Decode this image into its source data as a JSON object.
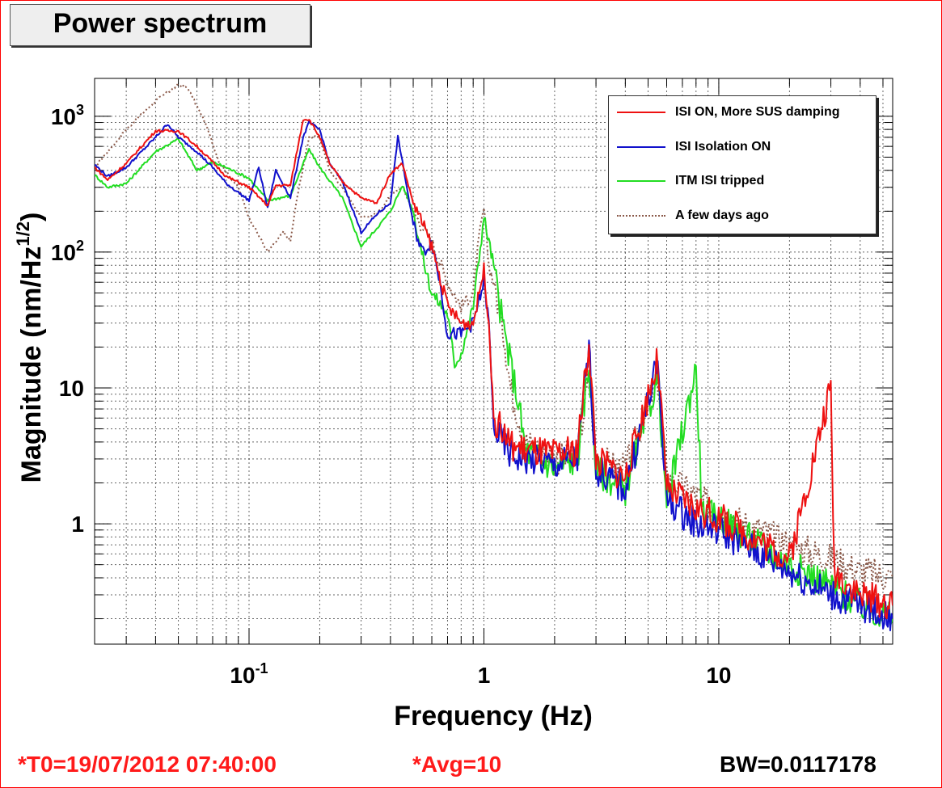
{
  "title": "Power spectrum",
  "footer": {
    "t0": "*T0=19/07/2012 07:40:00",
    "avg": "*Avg=10",
    "bw": "BW=0.0117178"
  },
  "colors": {
    "frame": "#ff0000",
    "footer_red": "#ff1a1a"
  },
  "chart_data": {
    "type": "line",
    "title": "Power spectrum",
    "xlabel": "Frequency (Hz)",
    "ylabel": "Magnitude (nm/Hz^1/2)",
    "xscale": "log",
    "yscale": "log",
    "xlim": [
      0.022,
      55
    ],
    "ylim": [
      0.13,
      1900
    ],
    "grid": true,
    "legend_position": "top-right",
    "x_tick_labels": [
      {
        "value": 0.1,
        "base": "10",
        "exp": "-1"
      },
      {
        "value": 1,
        "base": "1",
        "exp": ""
      },
      {
        "value": 10,
        "base": "10",
        "exp": ""
      }
    ],
    "y_tick_labels": [
      {
        "value": 1,
        "base": "1",
        "exp": ""
      },
      {
        "value": 10,
        "base": "10",
        "exp": ""
      },
      {
        "value": 100,
        "base": "10",
        "exp": "2"
      },
      {
        "value": 1000,
        "base": "10",
        "exp": "3"
      }
    ],
    "series": [
      {
        "name": "A few days ago",
        "color": "#8b5a4a",
        "dash": true,
        "points": [
          [
            0.022,
            420
          ],
          [
            0.03,
            800
          ],
          [
            0.04,
            1300
          ],
          [
            0.05,
            1700
          ],
          [
            0.055,
            1600
          ],
          [
            0.065,
            900
          ],
          [
            0.075,
            450
          ],
          [
            0.09,
            300
          ],
          [
            0.1,
            180
          ],
          [
            0.12,
            100
          ],
          [
            0.14,
            140
          ],
          [
            0.15,
            120
          ],
          [
            0.16,
            250
          ],
          [
            0.18,
            700
          ],
          [
            0.2,
            700
          ],
          [
            0.22,
            400
          ],
          [
            0.25,
            300
          ],
          [
            0.3,
            180
          ],
          [
            0.35,
            190
          ],
          [
            0.4,
            260
          ],
          [
            0.45,
            300
          ],
          [
            0.5,
            200
          ],
          [
            0.55,
            150
          ],
          [
            0.6,
            120
          ],
          [
            0.7,
            60
          ],
          [
            0.8,
            40
          ],
          [
            0.9,
            50
          ],
          [
            0.95,
            120
          ],
          [
            1.0,
            210
          ],
          [
            1.05,
            80
          ],
          [
            1.1,
            60
          ],
          [
            1.2,
            30
          ],
          [
            1.3,
            10
          ],
          [
            1.5,
            4
          ],
          [
            2.0,
            3
          ],
          [
            2.5,
            3.2
          ],
          [
            2.8,
            12
          ],
          [
            3.0,
            3
          ],
          [
            4.0,
            2.5
          ],
          [
            5.5,
            12
          ],
          [
            6.0,
            2.2
          ],
          [
            8.0,
            1.6
          ],
          [
            10,
            1.2
          ],
          [
            15,
            0.9
          ],
          [
            20,
            0.7
          ],
          [
            30,
            0.55
          ],
          [
            40,
            0.45
          ],
          [
            55,
            0.4
          ]
        ]
      },
      {
        "name": "ITM ISI tripped",
        "color": "#22dd22",
        "dash": false,
        "points": [
          [
            0.022,
            370
          ],
          [
            0.025,
            300
          ],
          [
            0.03,
            320
          ],
          [
            0.04,
            550
          ],
          [
            0.05,
            680
          ],
          [
            0.06,
            400
          ],
          [
            0.07,
            460
          ],
          [
            0.08,
            420
          ],
          [
            0.1,
            350
          ],
          [
            0.12,
            240
          ],
          [
            0.15,
            260
          ],
          [
            0.18,
            570
          ],
          [
            0.2,
            420
          ],
          [
            0.25,
            250
          ],
          [
            0.3,
            110
          ],
          [
            0.35,
            150
          ],
          [
            0.4,
            200
          ],
          [
            0.45,
            310
          ],
          [
            0.5,
            200
          ],
          [
            0.55,
            90
          ],
          [
            0.6,
            50
          ],
          [
            0.7,
            35
          ],
          [
            0.75,
            15
          ],
          [
            0.8,
            18
          ],
          [
            0.9,
            40
          ],
          [
            1.0,
            180
          ],
          [
            1.1,
            80
          ],
          [
            1.2,
            30
          ],
          [
            1.3,
            15
          ],
          [
            1.4,
            8
          ],
          [
            1.5,
            3.5
          ],
          [
            2.0,
            2.6
          ],
          [
            2.5,
            3
          ],
          [
            2.8,
            15
          ],
          [
            3.0,
            2.5
          ],
          [
            4.0,
            1.8
          ],
          [
            5.5,
            12
          ],
          [
            6.0,
            1.4
          ],
          [
            8.0,
            14
          ],
          [
            8.5,
            1.2
          ],
          [
            10,
            1.1
          ],
          [
            15,
            0.7
          ],
          [
            20,
            0.5
          ],
          [
            30,
            0.35
          ],
          [
            40,
            0.25
          ],
          [
            55,
            0.2
          ]
        ]
      },
      {
        "name": "ISI Isolation ON",
        "color": "#1111cc",
        "dash": false,
        "points": [
          [
            0.022,
            440
          ],
          [
            0.025,
            360
          ],
          [
            0.03,
            420
          ],
          [
            0.04,
            700
          ],
          [
            0.045,
            880
          ],
          [
            0.05,
            700
          ],
          [
            0.06,
            550
          ],
          [
            0.07,
            420
          ],
          [
            0.08,
            320
          ],
          [
            0.1,
            240
          ],
          [
            0.11,
            420
          ],
          [
            0.12,
            210
          ],
          [
            0.13,
            400
          ],
          [
            0.15,
            250
          ],
          [
            0.17,
            700
          ],
          [
            0.18,
            900
          ],
          [
            0.2,
            800
          ],
          [
            0.22,
            450
          ],
          [
            0.25,
            330
          ],
          [
            0.3,
            140
          ],
          [
            0.35,
            190
          ],
          [
            0.4,
            230
          ],
          [
            0.43,
            710
          ],
          [
            0.45,
            460
          ],
          [
            0.5,
            160
          ],
          [
            0.55,
            100
          ],
          [
            0.6,
            120
          ],
          [
            0.65,
            60
          ],
          [
            0.7,
            25
          ],
          [
            0.8,
            25
          ],
          [
            0.9,
            30
          ],
          [
            1.0,
            60
          ],
          [
            1.05,
            30
          ],
          [
            1.1,
            5
          ],
          [
            1.3,
            3.2
          ],
          [
            1.5,
            3
          ],
          [
            2.0,
            2.7
          ],
          [
            2.5,
            3
          ],
          [
            2.8,
            20
          ],
          [
            3.0,
            2.5
          ],
          [
            4.0,
            1.8
          ],
          [
            5.5,
            15
          ],
          [
            6.0,
            1.5
          ],
          [
            8.0,
            1.0
          ],
          [
            10,
            0.9
          ],
          [
            15,
            0.6
          ],
          [
            20,
            0.45
          ],
          [
            30,
            0.3
          ],
          [
            40,
            0.25
          ],
          [
            55,
            0.2
          ]
        ]
      },
      {
        "name": "ISI ON, More SUS damping",
        "color": "#ee1111",
        "dash": false,
        "points": [
          [
            0.022,
            420
          ],
          [
            0.025,
            340
          ],
          [
            0.03,
            450
          ],
          [
            0.04,
            780
          ],
          [
            0.05,
            780
          ],
          [
            0.06,
            600
          ],
          [
            0.07,
            460
          ],
          [
            0.08,
            360
          ],
          [
            0.1,
            300
          ],
          [
            0.12,
            220
          ],
          [
            0.13,
            310
          ],
          [
            0.15,
            310
          ],
          [
            0.17,
            950
          ],
          [
            0.18,
            950
          ],
          [
            0.2,
            700
          ],
          [
            0.22,
            450
          ],
          [
            0.25,
            330
          ],
          [
            0.3,
            250
          ],
          [
            0.35,
            230
          ],
          [
            0.4,
            380
          ],
          [
            0.45,
            450
          ],
          [
            0.5,
            230
          ],
          [
            0.55,
            160
          ],
          [
            0.6,
            110
          ],
          [
            0.7,
            40
          ],
          [
            0.8,
            30
          ],
          [
            0.9,
            30
          ],
          [
            1.0,
            75
          ],
          [
            1.05,
            30
          ],
          [
            1.1,
            6
          ],
          [
            1.3,
            3.8
          ],
          [
            1.5,
            3.5
          ],
          [
            2.0,
            3.2
          ],
          [
            2.5,
            3.5
          ],
          [
            2.8,
            22
          ],
          [
            3.0,
            3
          ],
          [
            4.0,
            2.2
          ],
          [
            5.5,
            16
          ],
          [
            6.0,
            1.8
          ],
          [
            8.0,
            1.3
          ],
          [
            10,
            1.1
          ],
          [
            15,
            0.75
          ],
          [
            20,
            0.55
          ],
          [
            30,
            10
          ],
          [
            31,
            0.45
          ],
          [
            40,
            0.3
          ],
          [
            55,
            0.25
          ]
        ]
      }
    ]
  }
}
